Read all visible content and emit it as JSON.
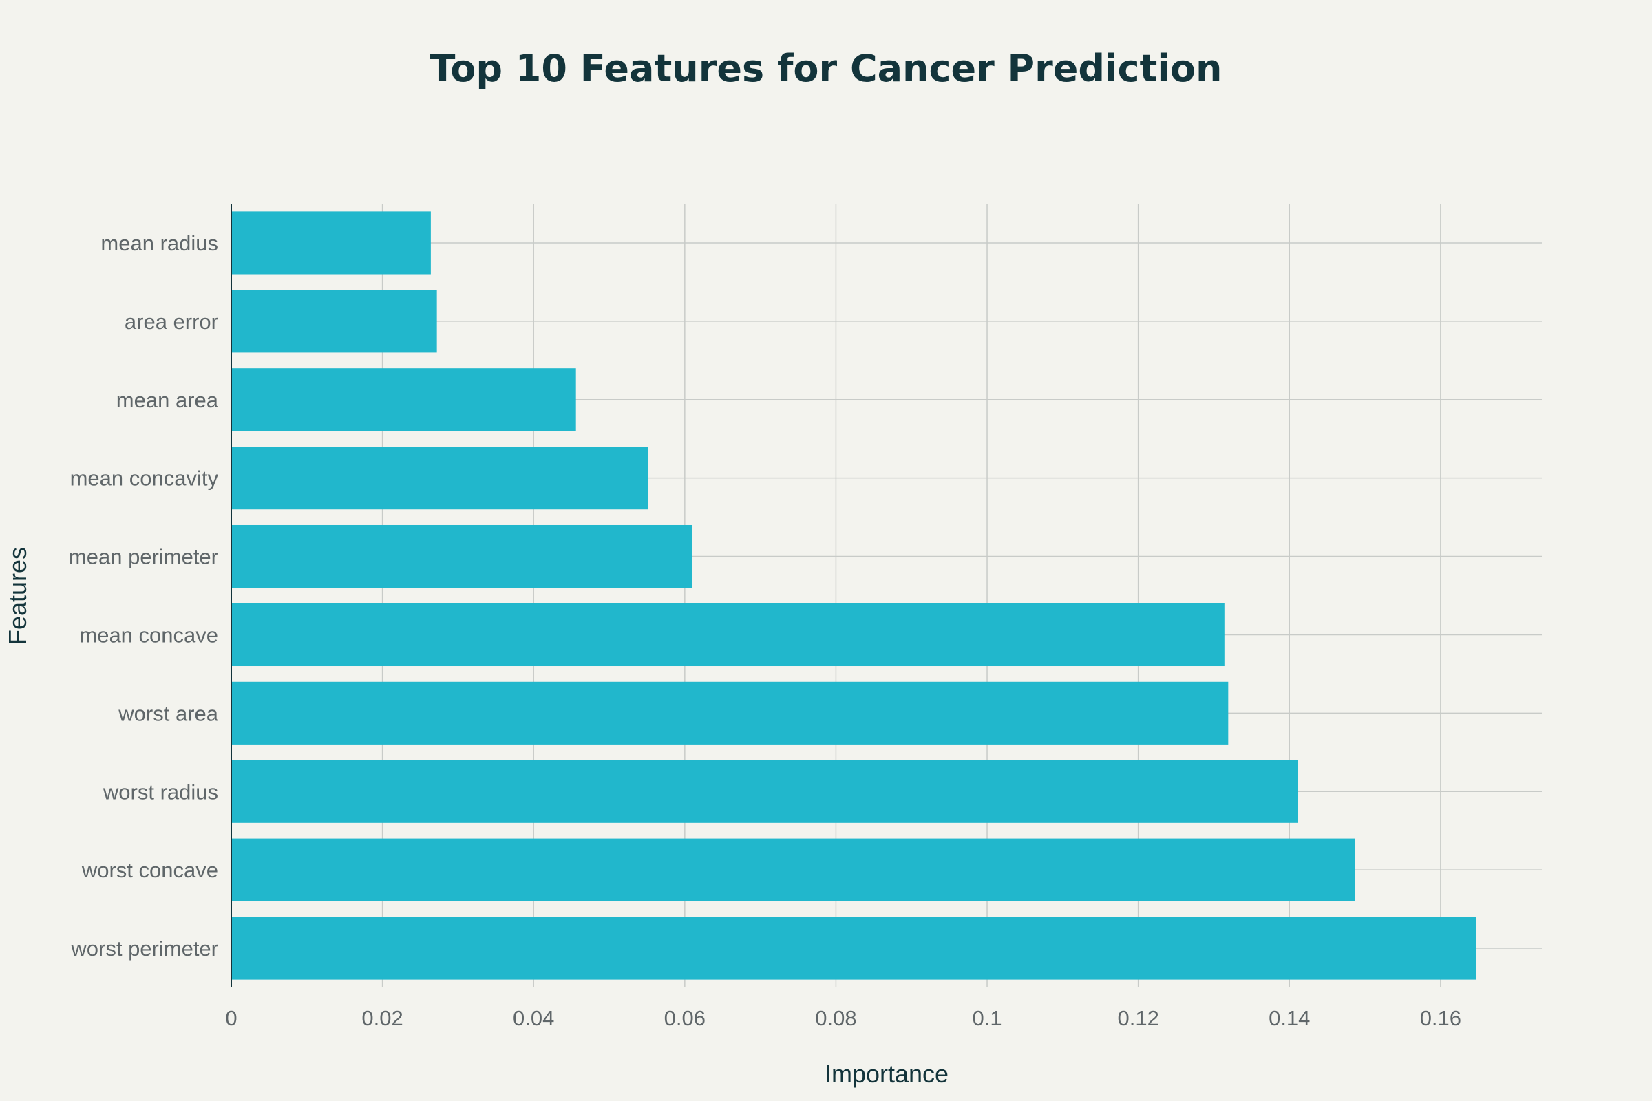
{
  "chart_data": {
    "type": "bar",
    "orientation": "horizontal",
    "title": "Top 10 Features for Cancer Prediction",
    "xlabel": "Importance",
    "ylabel": "Features",
    "categories": [
      "mean radius",
      "area error",
      "mean area",
      "mean concavity",
      "mean perimeter",
      "mean concave",
      "worst area",
      "worst radius",
      "worst concave",
      "worst perimeter"
    ],
    "values": [
      0.0264,
      0.0272,
      0.0456,
      0.0551,
      0.061,
      0.1314,
      0.1319,
      0.1411,
      0.1487,
      0.1647
    ],
    "xlim": [
      0,
      0.1734
    ],
    "x_ticks": [
      0,
      0.02,
      0.04,
      0.06,
      0.08,
      0.1,
      0.12,
      0.14,
      0.16
    ],
    "x_tick_labels": [
      "0",
      "0.02",
      "0.04",
      "0.06",
      "0.08",
      "0.1",
      "0.12",
      "0.14",
      "0.16"
    ],
    "grid": true,
    "legend": "none",
    "colors": {
      "bar": "#21b7cc",
      "background": "#f3f3ee",
      "title": "#13343b",
      "axis_title": "#13343b",
      "tick_label": "#5f6669",
      "grid": "#c8cbc8",
      "axis_line": "#13343b"
    }
  }
}
